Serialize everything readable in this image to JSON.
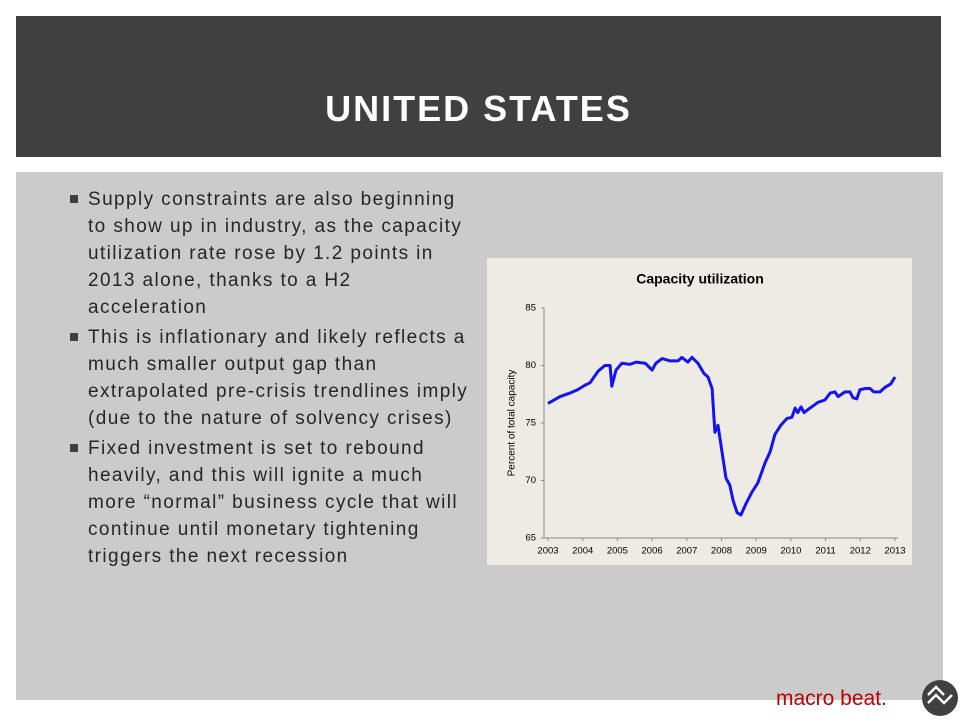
{
  "header": {
    "title": "UNITED STATES"
  },
  "bullets": [
    "Supply constraints are also beginning to show up in industry, as the capacity utilization rate rose by 1.2 points in 2013 alone, thanks to a H2 acceleration",
    "This is inflationary and likely reflects a much smaller output gap than extrapolated pre-crisis trendlines imply (due to the nature of solvency crises)",
    "Fixed investment is set to rebound heavily, and this will ignite a much more “normal” business cycle that will continue until monetary tightening triggers the next recession"
  ],
  "chart_data": {
    "type": "line",
    "title": "Capacity utilization",
    "y_label": "Percent of total capacity",
    "x": [
      2003.0,
      2003.35,
      2003.63,
      2003.86,
      2004.07,
      2004.21,
      2004.44,
      2004.64,
      2004.79,
      2004.84,
      2004.96,
      2005.13,
      2005.36,
      2005.54,
      2005.8,
      2006.0,
      2006.11,
      2006.29,
      2006.52,
      2006.75,
      2006.86,
      2007.03,
      2007.15,
      2007.32,
      2007.5,
      2007.61,
      2007.73,
      2007.81,
      2007.9,
      2008.01,
      2008.13,
      2008.24,
      2008.33,
      2008.45,
      2008.56,
      2008.71,
      2008.88,
      2009.05,
      2009.25,
      2009.4,
      2009.54,
      2009.71,
      2009.89,
      2010.03,
      2010.12,
      2010.2,
      2010.29,
      2010.38,
      2010.55,
      2010.78,
      2010.98,
      2011.13,
      2011.27,
      2011.36,
      2011.56,
      2011.7,
      2011.79,
      2011.9,
      2011.99,
      2012.16,
      2012.28,
      2012.39,
      2012.57,
      2012.71,
      2012.88,
      2013.0
    ],
    "series": [
      {
        "name": "Capacity utilization",
        "color": "#1414f0",
        "values": [
          76.7,
          77.3,
          77.6,
          77.9,
          78.3,
          78.5,
          79.5,
          80.0,
          80.0,
          78.2,
          79.6,
          80.2,
          80.1,
          80.3,
          80.2,
          79.6,
          80.2,
          80.6,
          80.4,
          80.4,
          80.7,
          80.3,
          80.7,
          80.2,
          79.3,
          79.0,
          78.0,
          74.2,
          74.8,
          72.6,
          70.2,
          69.6,
          68.3,
          67.2,
          67.0,
          68.0,
          69.0,
          69.8,
          71.5,
          72.5,
          74.0,
          74.8,
          75.4,
          75.5,
          76.3,
          75.9,
          76.4,
          75.9,
          76.3,
          76.8,
          77.0,
          77.6,
          77.7,
          77.3,
          77.7,
          77.7,
          77.2,
          77.1,
          77.9,
          78.0,
          78.0,
          77.7,
          77.7,
          78.1,
          78.4,
          79.0
        ]
      }
    ],
    "xlim": [
      2003,
      2013
    ],
    "xticks": [
      2003,
      2004,
      2005,
      2006,
      2007,
      2008,
      2009,
      2010,
      2011,
      2012,
      2013
    ],
    "ylim": [
      65,
      85
    ],
    "yticks": [
      65,
      70,
      75,
      80,
      85
    ],
    "grid": false
  },
  "footer": {
    "brand": "macro beat."
  }
}
